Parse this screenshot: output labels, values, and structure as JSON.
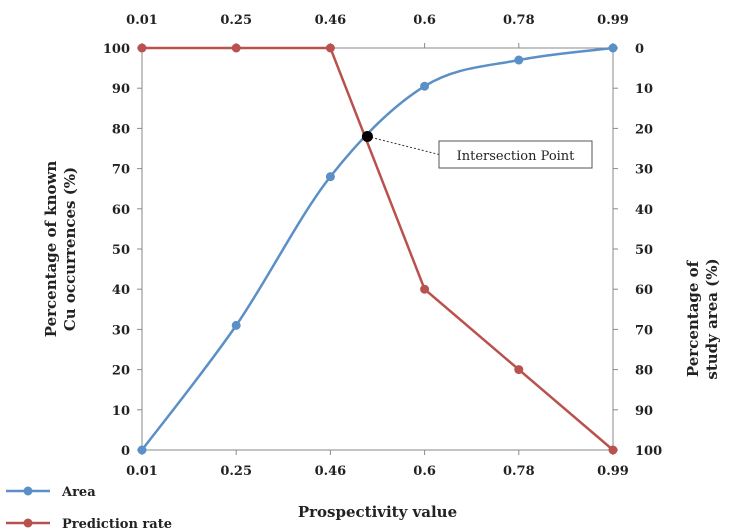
{
  "chart_data": {
    "type": "line",
    "xlabel": "Prospectivity value",
    "ylabel_left": [
      "Percentage of known",
      "Cu occurrences (%)"
    ],
    "ylabel_right": [
      "Percentage of",
      "study area (%)"
    ],
    "categories": [
      "0.01",
      "0.25",
      "0.46",
      "0.6",
      "0.78",
      "0.99"
    ],
    "top_categories": [
      "0.01",
      "0.25",
      "0.46",
      "0.6",
      "0.78",
      "0.99"
    ],
    "ylim_left": [
      0,
      100
    ],
    "yticks_left": [
      0,
      10,
      20,
      30,
      40,
      50,
      60,
      70,
      80,
      90,
      100
    ],
    "ylim_right": [
      100,
      0
    ],
    "yticks_right": [
      0,
      10,
      20,
      30,
      40,
      50,
      60,
      70,
      80,
      90,
      100
    ],
    "series": [
      {
        "name": "Area",
        "color": "#5b8fc7",
        "smooth": true,
        "values": [
          0,
          31,
          68,
          90.5,
          97,
          100
        ]
      },
      {
        "name": "Prediction  rate",
        "color": "#b9524e",
        "smooth": false,
        "values": [
          100,
          100,
          100,
          40,
          20,
          0
        ]
      }
    ],
    "annotation": {
      "label": "Intersection Point",
      "x_value": 0.515,
      "y_value": 78
    },
    "grid": false
  }
}
